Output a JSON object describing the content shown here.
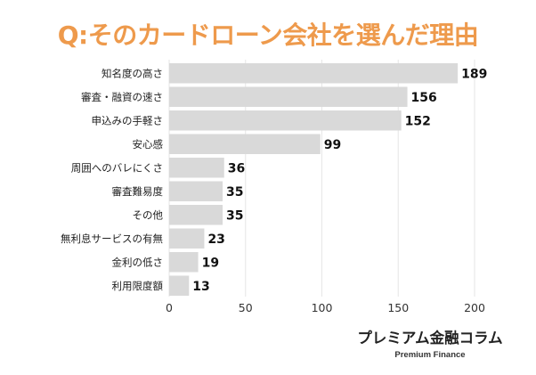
{
  "header": {
    "title": "Q:そのカードローン会社を選んだ理由"
  },
  "brand": {
    "name": "プレミアム金融コラム",
    "subtitle": "Premium Finance"
  },
  "colors": {
    "title": "#ee9a4c",
    "bar": "#d9d9d9",
    "grid": "#e6e6e6"
  },
  "chart_data": {
    "type": "bar",
    "orientation": "horizontal",
    "categories": [
      "知名度の高さ",
      "審査・融資の速さ",
      "申込みの手軽さ",
      "安心感",
      "周囲へのバレにくさ",
      "審査難易度",
      "その他",
      "無利息サービスの有無",
      "金利の低さ",
      "利用限度額"
    ],
    "values": [
      189,
      156,
      152,
      99,
      36,
      35,
      35,
      23,
      19,
      13
    ],
    "xlim": [
      0,
      200
    ],
    "xticks": [
      0,
      50,
      100,
      150,
      200
    ],
    "grid": true,
    "data_labels": true
  }
}
